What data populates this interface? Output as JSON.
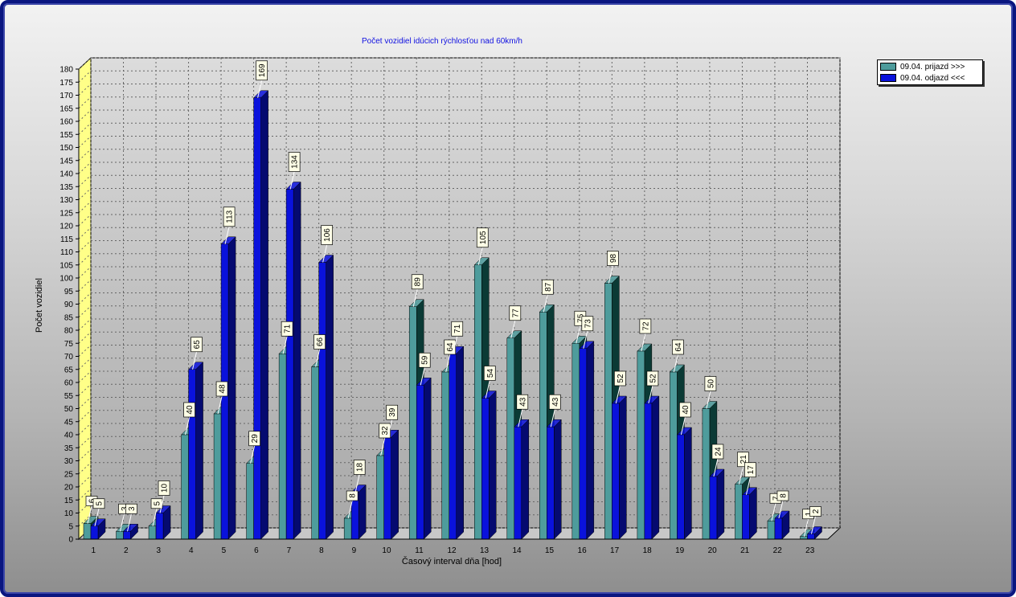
{
  "chart_data": {
    "type": "bar",
    "title": "Počet vozidiel idúcich rýchlosťou nad 60km/h",
    "xlabel": "Časový interval dňa [hod]",
    "ylabel": "Počet vozidiel",
    "ylim": [
      0,
      180
    ],
    "ytick_step": 5,
    "grid": true,
    "legend_position": "top-right",
    "categories": [
      "1",
      "2",
      "3",
      "4",
      "5",
      "6",
      "7",
      "8",
      "9",
      "10",
      "11",
      "12",
      "13",
      "14",
      "15",
      "16",
      "17",
      "18",
      "19",
      "20",
      "21",
      "22",
      "23"
    ],
    "series": [
      {
        "name": "09.04. prijazd >>>",
        "color": "#4e9c9c",
        "side_color": "#0b3a35",
        "values": [
          6,
          3,
          5,
          40,
          48,
          29,
          71,
          66,
          8,
          32,
          89,
          64,
          105,
          77,
          87,
          75,
          98,
          72,
          64,
          50,
          21,
          7,
          1
        ]
      },
      {
        "name": "09.04. odjazd <<<",
        "color": "#0a12dc",
        "side_color": "#050a70",
        "values": [
          5,
          3,
          10,
          65,
          113,
          169,
          134,
          106,
          18,
          39,
          59,
          71,
          54,
          43,
          43,
          73,
          52,
          52,
          40,
          24,
          17,
          8,
          2
        ]
      }
    ]
  }
}
